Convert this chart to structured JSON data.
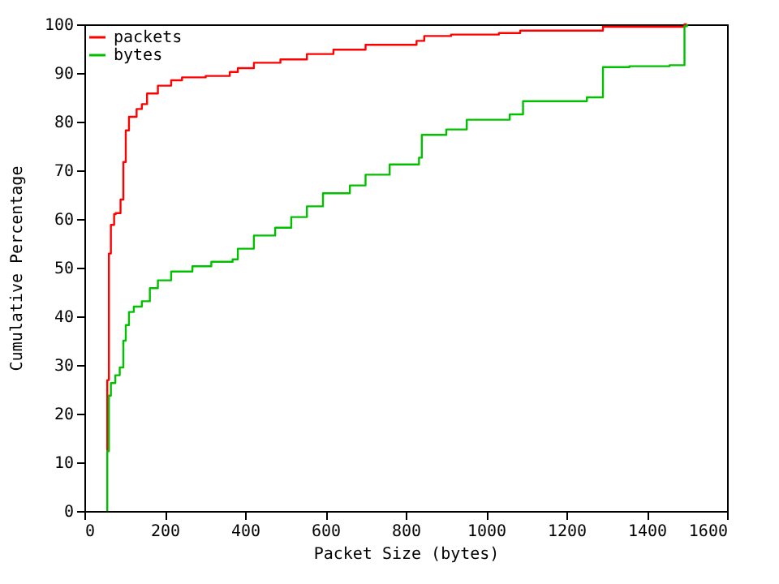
{
  "chart_data": {
    "type": "step",
    "xlabel": "Packet Size (bytes)",
    "ylabel": "Cumulative Percentage",
    "xlim": [
      0,
      1600
    ],
    "xticks": [
      0,
      200,
      400,
      600,
      800,
      1000,
      1200,
      1400,
      1600
    ],
    "ylim": [
      0,
      100
    ],
    "yticks": [
      0,
      10,
      20,
      30,
      40,
      50,
      60,
      70,
      80,
      90,
      100
    ],
    "grid": false,
    "legend": "top left",
    "series": [
      {
        "name": "packets",
        "color": "#ff0000",
        "x": [
          57,
          57,
          61,
          66,
          74,
          78,
          90,
          97,
          103,
          111,
          130,
          143,
          156,
          183,
          216,
          243,
          302,
          362,
          382,
          422,
          488,
          554,
          620,
          700,
          827,
          846,
          913,
          1032,
          1085,
          1291,
          1494,
          1500
        ],
        "values": [
          12.3,
          26.9,
          52.9,
          58.8,
          61,
          61.2,
          64,
          71.7,
          78.2,
          81,
          82.6,
          83.6,
          85.8,
          87.4,
          88.5,
          89.1,
          89.4,
          90.2,
          91,
          92.1,
          92.8,
          93.9,
          94.8,
          95.8,
          96.6,
          97.6,
          97.9,
          98.2,
          98.7,
          99.5,
          100,
          100
        ]
      },
      {
        "name": "bytes",
        "color": "#00c000",
        "x": [
          57,
          57,
          61,
          66,
          77,
          88,
          97,
          103,
          111,
          123,
          143,
          163,
          183,
          216,
          269,
          316,
          369,
          382,
          422,
          475,
          515,
          554,
          594,
          661,
          700,
          760,
          833,
          840,
          901,
          952,
          1059,
          1092,
          1251,
          1291,
          1357,
          1457,
          1494,
          1500
        ],
        "values": [
          0,
          12.3,
          23.7,
          26.3,
          27.9,
          29.5,
          35,
          38.2,
          40.9,
          42,
          43.1,
          45.8,
          47.4,
          49.2,
          50.3,
          51.2,
          51.7,
          53.9,
          56.6,
          58.2,
          60.4,
          62.6,
          65.3,
          66.9,
          69.1,
          71.2,
          72.6,
          77.3,
          78.4,
          80.4,
          81.5,
          84.2,
          85,
          91.2,
          91.4,
          91.6,
          99.6,
          100
        ]
      }
    ]
  }
}
